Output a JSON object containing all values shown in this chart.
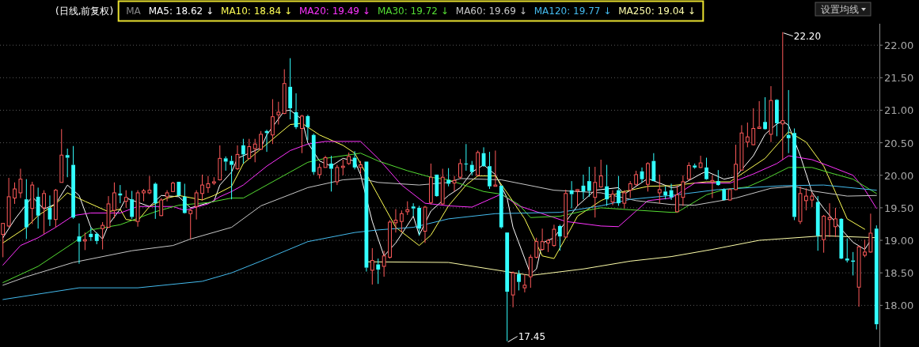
{
  "chart_data": {
    "type": "candlestick",
    "title": "(日线,前复权)",
    "categories": [
      null,
      null,
      null,
      null,
      null,
      null,
      null,
      null,
      null,
      null,
      null,
      null,
      null,
      null,
      null,
      null,
      null,
      null,
      null,
      null,
      null,
      null,
      null,
      null,
      null,
      null,
      null,
      null,
      null,
      null,
      null,
      null,
      null,
      null,
      null,
      null,
      null,
      null,
      null,
      null,
      null,
      null,
      null,
      null,
      null,
      null,
      null,
      null,
      null,
      null,
      null,
      null,
      null,
      null,
      null,
      null,
      null,
      null,
      null,
      null,
      null,
      null,
      null,
      null,
      null,
      null,
      null,
      null,
      null,
      null,
      null,
      null,
      null,
      null,
      null,
      null,
      null,
      null,
      null,
      null,
      null,
      null,
      null,
      null,
      null,
      null,
      null,
      null,
      null,
      null,
      null,
      null,
      null,
      null,
      null,
      null,
      null,
      null,
      null,
      null,
      null,
      null,
      null,
      null,
      null,
      null,
      null,
      null,
      null,
      null,
      null,
      null,
      null,
      null,
      null,
      null,
      null,
      null,
      null,
      null,
      null,
      null,
      null,
      null,
      null,
      null,
      null,
      null,
      null,
      null,
      null,
      null,
      null,
      null,
      null,
      null,
      null,
      null,
      null,
      null,
      null,
      null,
      null,
      null,
      null,
      null,
      null,
      null,
      null,
      null
    ],
    "ohlc": [
      [
        19.09,
        19.26,
        18.74,
        19.26
      ],
      [
        19.22,
        19.96,
        19.2,
        19.67
      ],
      [
        19.65,
        19.89,
        19.56,
        19.79
      ],
      [
        19.73,
        20.1,
        19.65,
        19.94
      ],
      [
        19.63,
        19.94,
        19.02,
        19.2
      ],
      [
        19.49,
        19.9,
        19.25,
        19.85
      ],
      [
        19.67,
        19.81,
        19.18,
        19.38
      ],
      [
        19.5,
        19.77,
        19.1,
        19.72
      ],
      [
        19.5,
        19.69,
        19.22,
        19.32
      ],
      [
        19.32,
        19.79,
        19.2,
        19.77
      ],
      [
        19.89,
        20.71,
        19.89,
        20.31
      ],
      [
        20.31,
        20.41,
        19.97,
        20.27
      ],
      [
        20.16,
        20.45,
        19.33,
        19.35
      ],
      [
        19.06,
        19.26,
        18.64,
        18.98
      ],
      [
        18.99,
        19.12,
        18.85,
        19.01
      ],
      [
        19.1,
        19.2,
        18.99,
        19.05
      ],
      [
        19.1,
        19.12,
        18.94,
        18.99
      ],
      [
        19.18,
        19.28,
        18.86,
        19.23
      ],
      [
        19.2,
        19.68,
        19.19,
        19.56
      ],
      [
        19.46,
        19.89,
        19.34,
        19.73
      ],
      [
        19.72,
        19.85,
        19.57,
        19.69
      ],
      [
        19.6,
        19.77,
        19.5,
        19.66
      ],
      [
        19.63,
        19.76,
        19.33,
        19.36
      ],
      [
        19.29,
        19.77,
        19.21,
        19.73
      ],
      [
        19.73,
        19.79,
        19.6,
        19.76
      ],
      [
        19.73,
        19.99,
        19.71,
        19.77
      ],
      [
        19.87,
        19.89,
        19.33,
        19.57
      ],
      [
        19.38,
        19.65,
        19.37,
        19.62
      ],
      [
        19.67,
        19.77,
        19.6,
        19.73
      ],
      [
        19.75,
        19.9,
        19.75,
        19.88
      ],
      [
        19.9,
        19.9,
        19.67,
        19.69
      ],
      [
        19.67,
        19.87,
        19.41,
        19.42
      ],
      [
        19.41,
        19.48,
        19.02,
        19.46
      ],
      [
        19.52,
        19.77,
        19.32,
        19.73
      ],
      [
        19.72,
        20.01,
        19.61,
        19.85
      ],
      [
        19.81,
        19.99,
        19.73,
        19.87
      ],
      [
        19.88,
        19.97,
        19.85,
        19.9
      ],
      [
        19.93,
        20.46,
        19.92,
        20.26
      ],
      [
        20.26,
        20.29,
        20.07,
        20.21
      ],
      [
        20.22,
        20.3,
        19.63,
        20.16
      ],
      [
        20.1,
        20.46,
        20.08,
        20.32
      ],
      [
        20.46,
        20.56,
        20.18,
        20.32
      ],
      [
        20.26,
        20.56,
        20.25,
        20.44
      ],
      [
        20.41,
        20.56,
        20.2,
        20.48
      ],
      [
        20.4,
        20.68,
        20.39,
        20.63
      ],
      [
        20.68,
        20.7,
        20.36,
        20.65
      ],
      [
        20.62,
        21.17,
        20.48,
        20.9
      ],
      [
        20.93,
        21.13,
        20.78,
        20.97
      ],
      [
        20.95,
        21.63,
        20.94,
        21.41
      ],
      [
        21.36,
        21.8,
        20.86,
        21.03
      ],
      [
        20.97,
        21.26,
        20.71,
        20.74
      ],
      [
        20.72,
        20.93,
        20.34,
        20.91
      ],
      [
        20.91,
        20.93,
        20.54,
        20.74
      ],
      [
        20.62,
        20.64,
        20.01,
        20.05
      ],
      [
        20.01,
        20.18,
        19.95,
        20.12
      ],
      [
        20.12,
        20.3,
        20.12,
        20.27
      ],
      [
        20.18,
        20.3,
        19.75,
        20.1
      ],
      [
        19.9,
        20.16,
        19.85,
        20.12
      ],
      [
        20.12,
        20.24,
        20.0,
        20.14
      ],
      [
        20.18,
        20.35,
        20.16,
        20.29
      ],
      [
        20.27,
        20.37,
        20.09,
        20.12
      ],
      [
        20.12,
        20.22,
        20.03,
        20.16
      ],
      [
        20.21,
        20.21,
        18.52,
        18.58
      ],
      [
        18.54,
        18.88,
        18.32,
        18.69
      ],
      [
        18.63,
        18.72,
        18.33,
        18.55
      ],
      [
        18.6,
        18.84,
        18.44,
        18.76
      ],
      [
        18.74,
        19.31,
        18.72,
        19.28
      ],
      [
        19.27,
        19.48,
        19.12,
        19.31
      ],
      [
        19.29,
        19.46,
        19.12,
        19.41
      ],
      [
        19.44,
        19.6,
        19.39,
        19.47
      ],
      [
        19.52,
        19.57,
        19.37,
        19.49
      ],
      [
        19.5,
        19.53,
        19.07,
        19.18
      ],
      [
        19.14,
        19.53,
        18.96,
        19.51
      ],
      [
        19.58,
        20.18,
        19.55,
        19.97
      ],
      [
        20.01,
        20.01,
        19.67,
        19.68
      ],
      [
        19.56,
        20.1,
        19.55,
        19.97
      ],
      [
        19.93,
        20.11,
        19.83,
        19.87
      ],
      [
        19.88,
        19.99,
        19.75,
        19.92
      ],
      [
        19.97,
        20.25,
        19.94,
        20.18
      ],
      [
        20.18,
        20.48,
        20.07,
        20.17
      ],
      [
        20.16,
        20.22,
        20.0,
        20.05
      ],
      [
        20.0,
        20.38,
        19.98,
        20.35
      ],
      [
        20.34,
        20.43,
        20.13,
        20.14
      ],
      [
        20.14,
        20.36,
        19.79,
        19.83
      ],
      [
        19.83,
        20.38,
        19.83,
        19.85
      ],
      [
        19.84,
        19.84,
        19.18,
        19.2
      ],
      [
        19.12,
        19.12,
        17.45,
        18.21
      ],
      [
        18.16,
        18.52,
        17.97,
        18.5
      ],
      [
        18.48,
        18.54,
        18.23,
        18.36
      ],
      [
        18.27,
        18.48,
        18.2,
        18.31
      ],
      [
        18.44,
        18.78,
        18.27,
        18.74
      ],
      [
        18.74,
        19.04,
        18.72,
        18.98
      ],
      [
        18.86,
        19.18,
        18.84,
        18.98
      ],
      [
        18.96,
        19.02,
        18.82,
        19.0
      ],
      [
        18.92,
        19.24,
        18.9,
        19.17
      ],
      [
        19.22,
        19.24,
        18.84,
        19.06
      ],
      [
        19.05,
        19.78,
        19.05,
        19.72
      ],
      [
        19.77,
        19.91,
        19.49,
        19.71
      ],
      [
        19.76,
        19.79,
        19.53,
        19.78
      ],
      [
        19.84,
        20.01,
        19.63,
        19.75
      ],
      [
        19.91,
        20.13,
        19.67,
        19.76
      ],
      [
        19.66,
        20.13,
        19.35,
        19.89
      ],
      [
        19.82,
        20.24,
        19.81,
        19.99
      ],
      [
        19.83,
        20.16,
        19.53,
        19.63
      ],
      [
        19.59,
        19.77,
        19.54,
        19.71
      ],
      [
        19.77,
        19.99,
        19.53,
        19.57
      ],
      [
        19.57,
        19.77,
        19.49,
        19.73
      ],
      [
        19.77,
        19.91,
        19.65,
        19.87
      ],
      [
        19.86,
        20.07,
        19.84,
        20.01
      ],
      [
        20.06,
        20.12,
        19.89,
        19.94
      ],
      [
        19.86,
        20.2,
        19.75,
        20.18
      ],
      [
        20.22,
        20.34,
        19.91,
        19.91
      ],
      [
        19.73,
        20.01,
        19.57,
        19.78
      ],
      [
        19.75,
        19.83,
        19.63,
        19.69
      ],
      [
        19.77,
        19.87,
        19.62,
        19.66
      ],
      [
        19.44,
        19.84,
        19.43,
        19.7
      ],
      [
        19.66,
        20.0,
        19.53,
        19.9
      ],
      [
        19.94,
        20.2,
        19.93,
        20.15
      ],
      [
        20.15,
        20.18,
        20.1,
        20.12
      ],
      [
        20.12,
        20.3,
        20.11,
        20.19
      ],
      [
        20.12,
        20.27,
        19.93,
        19.94
      ],
      [
        19.9,
        20.0,
        19.65,
        19.92
      ],
      [
        19.91,
        20.08,
        19.84,
        19.85
      ],
      [
        19.78,
        19.8,
        19.61,
        19.62
      ],
      [
        19.62,
        19.8,
        19.61,
        19.78
      ],
      [
        19.78,
        20.47,
        19.77,
        20.17
      ],
      [
        20.08,
        20.77,
        20.07,
        20.65
      ],
      [
        20.51,
        20.81,
        20.43,
        20.59
      ],
      [
        20.47,
        21.03,
        20.46,
        20.72
      ],
      [
        20.72,
        21.14,
        20.72,
        20.74
      ],
      [
        20.82,
        21.2,
        20.7,
        20.71
      ],
      [
        20.63,
        21.37,
        20.51,
        21.15
      ],
      [
        21.16,
        21.17,
        20.6,
        20.8
      ],
      [
        20.79,
        22.2,
        20.24,
        20.84
      ],
      [
        20.62,
        21.31,
        20.34,
        20.57
      ],
      [
        20.65,
        20.72,
        19.31,
        19.36
      ],
      [
        19.29,
        19.83,
        19.25,
        19.72
      ],
      [
        19.61,
        19.8,
        19.46,
        19.68
      ],
      [
        19.62,
        19.74,
        19.51,
        19.68
      ],
      [
        19.59,
        19.68,
        18.84,
        19.07
      ],
      [
        19.01,
        19.39,
        18.81,
        19.37
      ],
      [
        19.32,
        19.57,
        19.05,
        19.35
      ],
      [
        19.21,
        19.5,
        19.05,
        19.33
      ],
      [
        19.33,
        19.34,
        18.71,
        18.72
      ],
      [
        18.72,
        19.03,
        18.66,
        18.69
      ],
      [
        18.69,
        18.82,
        18.46,
        18.67
      ],
      [
        18.28,
        18.92,
        17.98,
        18.9
      ],
      [
        18.77,
        19.01,
        18.74,
        18.82
      ],
      [
        18.82,
        19.41,
        18.81,
        19.11
      ],
      [
        19.18,
        19.23,
        17.63,
        17.71
      ]
    ],
    "series": [
      {
        "name": "MA5: 18.62 ↓",
        "type": "line",
        "color": "#ffffff",
        "values": [
          19.04,
          null,
          19.32,
          null,
          null,
          19.67,
          null,
          19.48,
          null,
          19.56,
          null,
          19.85,
          null,
          19.69,
          null,
          19.2,
          null,
          19.02,
          19.24,
          null,
          19.48,
          19.65,
          null,
          null,
          null,
          19.52,
          null,
          19.69,
          null,
          null,
          19.67,
          null,
          19.5,
          null,
          null,
          null,
          19.6,
          19.85,
          null,
          20.05,
          20.26,
          null,
          null,
          null,
          20.42,
          20.62,
          null,
          null,
          20.99,
          21.0,
          null,
          20.86,
          20.5,
          null,
          20.22,
          null,
          20.14,
          null,
          20.26,
          null,
          20.22,
          20.01,
          null,
          19.29,
          null,
          18.76,
          null,
          18.96,
          null,
          null,
          19.37,
          19.08,
          null,
          19.45,
          null,
          null,
          19.69,
          null,
          19.81,
          null,
          20.05,
          null,
          20.16,
          null,
          20.01,
          null,
          19.65,
          19.2,
          null,
          null,
          18.48,
          18.56,
          18.96,
          null,
          19.04,
          null,
          null,
          null,
          19.53,
          null,
          null,
          19.77,
          null,
          null,
          null,
          19.81,
          19.71,
          null,
          null,
          19.89,
          19.95,
          null,
          null,
          null,
          19.81,
          19.82,
          null,
          null,
          null,
          20.02,
          20.06,
          null,
          null,
          19.94,
          null,
          19.98,
          null,
          null,
          20.3,
          null,
          20.63,
          null,
          20.79,
          20.83,
          20.77,
          null,
          20.3,
          null,
          19.74,
          null,
          19.49,
          null,
          null,
          19.17,
          null,
          18.97,
          null,
          18.86,
          19.0,
          null
        ]
      },
      {
        "name": "MA10: 18.84 ↓",
        "type": "line",
        "color": "#ffff55",
        "values": [
          18.96,
          null,
          null,
          null,
          19.2,
          null,
          19.38,
          null,
          null,
          19.56,
          null,
          19.73,
          null,
          null,
          19.6,
          null,
          null,
          null,
          19.44,
          null,
          19.48,
          19.32,
          null,
          19.3,
          null,
          19.52,
          null,
          null,
          19.65,
          null,
          19.69,
          null,
          null,
          null,
          19.62,
          null,
          19.69,
          null,
          null,
          19.83,
          null,
          20.18,
          null,
          null,
          null,
          20.48,
          null,
          null,
          null,
          20.78,
          null,
          20.8,
          null,
          null,
          20.62,
          null,
          null,
          null,
          20.46,
          null,
          20.34,
          20.18,
          null,
          null,
          19.69,
          null,
          null,
          19.2,
          null,
          null,
          null,
          18.92,
          null,
          19.08,
          null,
          null,
          19.53,
          null,
          null,
          19.85,
          null,
          19.99,
          null,
          null,
          19.99,
          null,
          19.73,
          null,
          null,
          19.33,
          null,
          null,
          18.76,
          null,
          18.72,
          null,
          19.04,
          null,
          19.37,
          null,
          null,
          null,
          19.61,
          null,
          null,
          19.73,
          null,
          null,
          19.79,
          null,
          19.83,
          null,
          null,
          null,
          19.84,
          null,
          null,
          null,
          null,
          null,
          19.9,
          null,
          null,
          null,
          19.9,
          null,
          20.02,
          null,
          null,
          null,
          20.26,
          null,
          null,
          null,
          20.67,
          null,
          null,
          20.51,
          null,
          null,
          20.14,
          null,
          19.74,
          null,
          19.33,
          null,
          null,
          19.17,
          null,
          null
        ]
      },
      {
        "name": "MA20: 19.49 ↓",
        "type": "line",
        "color": "#ff33ff",
        "values": [
          18.62,
          null,
          null,
          18.92,
          null,
          null,
          19.04,
          null,
          null,
          19.2,
          null,
          null,
          19.38,
          null,
          null,
          19.42,
          null,
          null,
          null,
          null,
          19.42,
          null,
          null,
          19.52,
          null,
          null,
          null,
          null,
          null,
          19.52,
          null,
          19.46,
          null,
          null,
          null,
          19.56,
          null,
          19.67,
          null,
          19.75,
          null,
          19.85,
          null,
          null,
          null,
          20.14,
          null,
          null,
          null,
          20.38,
          null,
          null,
          20.48,
          null,
          null,
          20.52,
          null,
          null,
          null,
          null,
          null,
          20.52,
          null,
          null,
          20.26,
          null,
          null,
          null,
          19.85,
          null,
          null,
          null,
          19.57,
          null,
          null,
          null,
          19.53,
          null,
          null,
          null,
          19.51,
          null,
          null,
          null,
          null,
          19.71,
          null,
          null,
          19.53,
          null,
          null,
          null,
          19.41,
          null,
          null,
          null,
          19.29,
          null,
          null,
          null,
          null,
          null,
          19.22,
          null,
          null,
          19.21,
          null,
          null,
          19.45,
          null,
          19.61,
          null,
          null,
          null,
          19.65,
          null,
          null,
          null,
          19.88,
          null,
          null,
          null,
          null,
          null,
          19.88,
          null,
          null,
          null,
          20.02,
          null,
          null,
          null,
          20.18,
          null,
          20.3,
          null,
          null,
          null,
          20.24,
          null,
          null,
          20.14,
          null,
          null,
          null,
          20.0,
          null,
          19.78,
          null,
          19.49
        ]
      },
      {
        "name": "MA30: 19.72 ↓",
        "type": "line",
        "color": "#55dd33",
        "values": [
          18.35,
          null,
          null,
          null,
          null,
          null,
          18.6,
          null,
          null,
          null,
          null,
          null,
          18.96,
          null,
          null,
          19.16,
          null,
          null,
          null,
          null,
          19.24,
          null,
          null,
          null,
          null,
          null,
          19.44,
          null,
          null,
          null,
          19.54,
          null,
          null,
          null,
          null,
          19.58,
          null,
          null,
          null,
          19.65,
          null,
          19.65,
          null,
          null,
          null,
          19.85,
          null,
          null,
          null,
          20.05,
          null,
          null,
          20.2,
          null,
          null,
          20.26,
          null,
          null,
          null,
          null,
          null,
          20.34,
          null,
          null,
          20.22,
          null,
          null,
          null,
          null,
          20.07,
          null,
          null,
          null,
          19.97,
          null,
          null,
          19.93,
          null,
          null,
          null,
          null,
          null,
          19.75,
          null,
          null,
          19.71,
          null,
          null,
          19.55,
          null,
          19.35,
          null,
          null,
          null,
          null,
          19.37,
          null,
          null,
          null,
          19.45,
          null,
          null,
          19.5,
          null,
          null,
          null,
          null,
          19.47,
          null,
          null,
          null,
          null,
          null,
          null,
          19.43,
          19.43,
          null,
          null,
          null,
          null,
          19.7,
          null,
          null,
          19.78,
          null,
          null,
          null,
          19.82,
          null,
          null,
          19.94,
          null,
          null,
          null,
          20.12,
          null,
          null,
          null,
          20.12,
          null,
          null,
          20.04,
          null,
          null,
          null,
          19.94,
          null,
          null,
          null,
          19.72
        ]
      },
      {
        "name": "MA60: 19.69 ↓",
        "type": "line",
        "color": "#c8c8c8",
        "values": [
          18.31,
          null,
          null,
          null,
          18.44,
          null,
          null,
          null,
          null,
          null,
          null,
          null,
          18.66,
          null,
          null,
          null,
          null,
          null,
          null,
          null,
          null,
          null,
          18.84,
          null,
          null,
          null,
          null,
          null,
          null,
          18.92,
          null,
          null,
          19.02,
          null,
          null,
          null,
          null,
          null,
          null,
          19.2,
          null,
          null,
          null,
          null,
          19.53,
          null,
          null,
          null,
          null,
          null,
          null,
          null,
          19.81,
          null,
          null,
          null,
          null,
          null,
          19.93,
          null,
          null,
          19.95,
          null,
          null,
          19.89,
          null,
          null,
          null,
          null,
          null,
          null,
          19.85,
          null,
          null,
          null,
          null,
          19.89,
          null,
          19.95,
          null,
          null,
          null,
          null,
          null,
          null,
          19.93,
          null,
          null,
          null,
          null,
          null,
          null,
          null,
          null,
          19.77,
          null,
          null,
          null,
          null,
          null,
          null,
          null,
          19.73,
          null,
          null,
          null,
          null,
          null,
          19.61,
          null,
          null,
          null,
          null,
          null,
          19.55,
          null,
          null,
          null,
          19.54,
          null,
          null,
          null,
          null,
          null,
          null,
          19.65,
          null,
          null,
          null,
          null,
          null,
          19.8,
          null,
          null,
          null,
          19.83,
          null,
          null,
          19.76,
          null,
          null,
          null,
          null,
          null,
          19.68,
          null,
          null,
          null,
          null,
          19.69
        ]
      },
      {
        "name": "MA120: 19.77 ↓",
        "type": "line",
        "color": "#44bbee",
        "values": [
          18.09,
          null,
          null,
          null,
          null,
          null,
          null,
          null,
          null,
          null,
          null,
          null,
          null,
          18.27,
          null,
          null,
          null,
          null,
          null,
          null,
          null,
          null,
          null,
          18.27,
          null,
          null,
          null,
          null,
          null,
          null,
          null,
          null,
          null,
          null,
          18.37,
          null,
          null,
          null,
          null,
          18.5,
          null,
          null,
          null,
          null,
          18.68,
          null,
          null,
          null,
          null,
          null,
          null,
          null,
          18.98,
          null,
          null,
          null,
          null,
          null,
          null,
          null,
          19.12,
          null,
          null,
          null,
          19.16,
          null,
          null,
          null,
          null,
          null,
          19.2,
          null,
          null,
          null,
          null,
          null,
          19.33,
          null,
          null,
          null,
          null,
          null,
          null,
          null,
          19.41,
          null,
          null,
          null,
          null,
          null,
          null,
          null,
          null,
          null,
          null,
          19.43,
          null,
          null,
          null,
          null,
          null,
          null,
          19.53,
          null,
          null,
          null,
          null,
          19.63,
          null,
          null,
          null,
          null,
          null,
          null,
          19.69,
          null,
          null,
          null,
          null,
          null,
          null,
          null,
          19.78,
          null,
          null,
          null,
          null,
          null,
          null,
          null,
          null,
          null,
          null,
          19.84,
          null,
          null,
          null,
          null,
          null,
          null,
          19.85,
          null,
          null,
          null,
          null,
          null,
          null,
          null,
          null,
          19.77
        ]
      },
      {
        "name": "MA250: 19.04 ↓",
        "type": "line",
        "color": "#ffffaa",
        "values": [
          null,
          null,
          null,
          null,
          null,
          null,
          null,
          null,
          null,
          null,
          null,
          null,
          null,
          null,
          null,
          null,
          null,
          null,
          null,
          null,
          null,
          null,
          null,
          null,
          null,
          null,
          null,
          null,
          null,
          null,
          null,
          null,
          null,
          null,
          null,
          null,
          null,
          null,
          null,
          null,
          null,
          null,
          null,
          null,
          null,
          null,
          null,
          null,
          null,
          null,
          null,
          null,
          null,
          null,
          null,
          null,
          null,
          null,
          null,
          null,
          null,
          null,
          18.67,
          null,
          null,
          null,
          null,
          null,
          null,
          null,
          null,
          null,
          null,
          null,
          null,
          null,
          18.66,
          null,
          null,
          null,
          null,
          null,
          null,
          null,
          null,
          null,
          null,
          null,
          null,
          null,
          18.46,
          null,
          null,
          null,
          null,
          null,
          null,
          null,
          null,
          18.56,
          null,
          null,
          null,
          null,
          null,
          null,
          null,
          18.68,
          null,
          null,
          null,
          null,
          null,
          null,
          18.75,
          null,
          null,
          null,
          null,
          null,
          null,
          18.86,
          null,
          null,
          null,
          null,
          null,
          null,
          null,
          19.0,
          null,
          null,
          null,
          null,
          null,
          null,
          null,
          null,
          null,
          null,
          19.07,
          null,
          null,
          null,
          null,
          null,
          null,
          null,
          null,
          19.04
        ]
      }
    ],
    "ylim": [
      17.36,
      22.33
    ],
    "yticks": [
      {
        "value": 18,
        "label": "18.00"
      },
      {
        "value": 18.5,
        "label": "18.50"
      },
      {
        "value": 19,
        "label": "19.00"
      },
      {
        "value": 19.5,
        "label": "19.50"
      },
      {
        "value": 20,
        "label": "20.00"
      },
      {
        "value": 20.5,
        "label": "20.50"
      },
      {
        "value": 21,
        "label": "21.00"
      },
      {
        "value": 21.5,
        "label": "21.50"
      },
      {
        "value": 22,
        "label": "22.00"
      }
    ],
    "grid": "y",
    "legend": "top left",
    "tick_labels": "y",
    "annotations": [
      "MA",
      "设置均线",
      "22.20",
      "17.45"
    ]
  }
}
